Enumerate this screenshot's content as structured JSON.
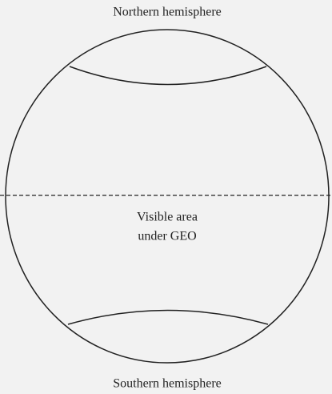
{
  "labels": {
    "top": "Northern hemisphere",
    "middle": [
      "Visible area",
      "under GEO"
    ],
    "bottom": "Southern hemisphere"
  }
}
